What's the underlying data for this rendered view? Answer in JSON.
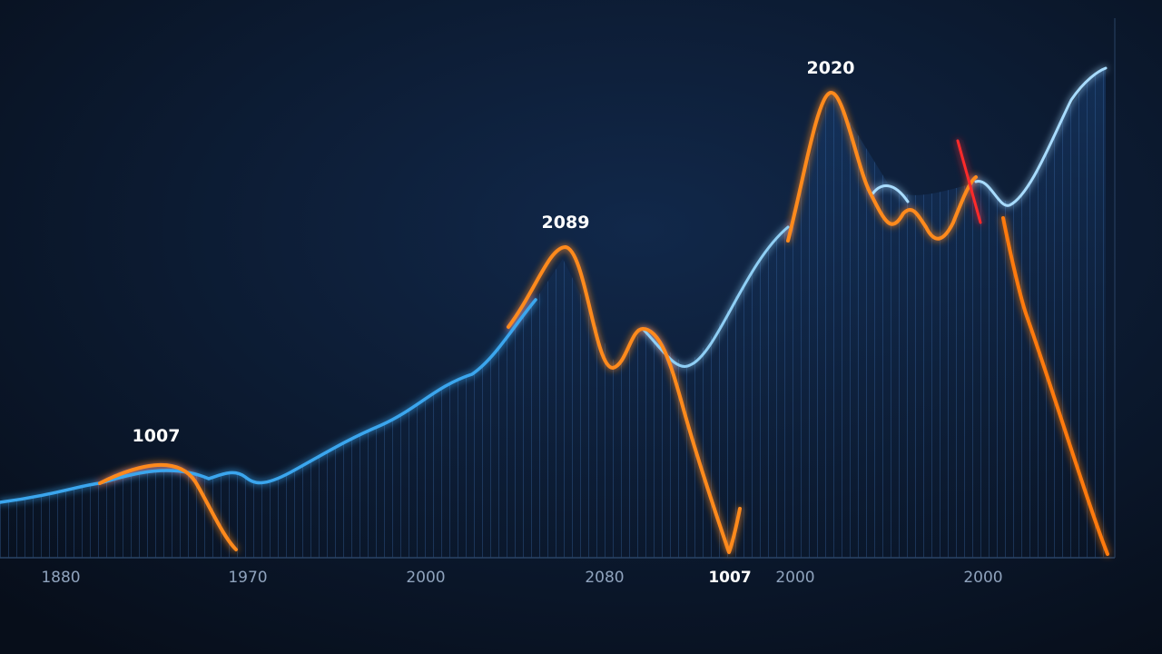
{
  "chart_data": {
    "type": "line",
    "annotations": [
      "1007",
      "2089",
      "2020"
    ],
    "categories": [
      "1880",
      "1970",
      "2000",
      "2080",
      "1007",
      "2000",
      "2000"
    ]
  }
}
